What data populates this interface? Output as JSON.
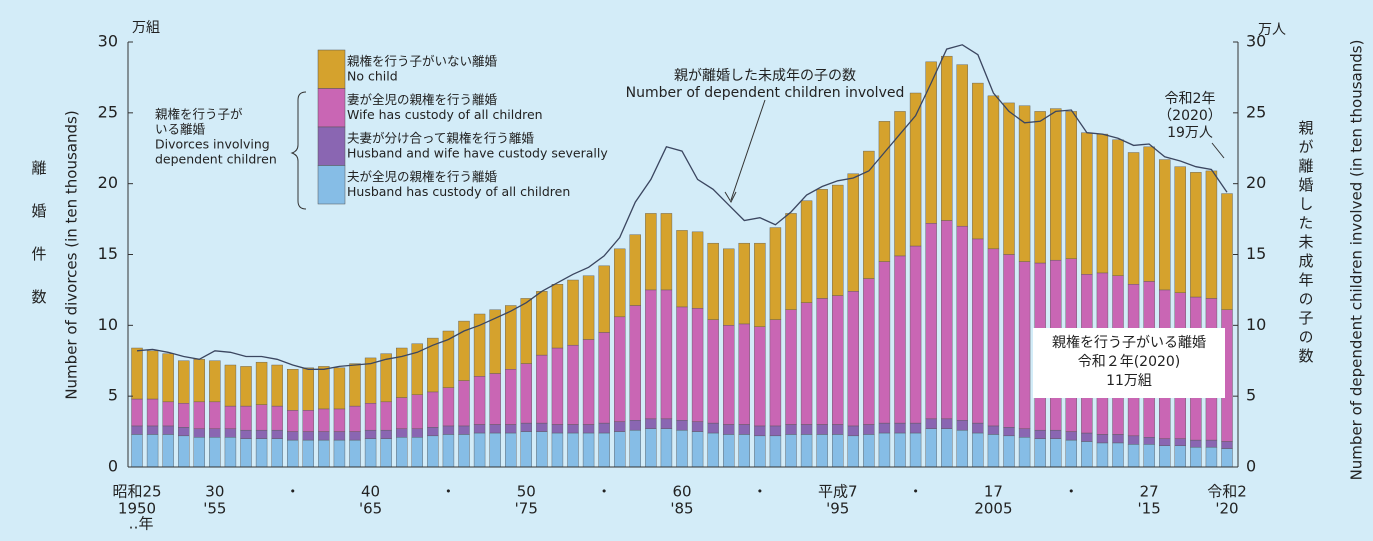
{
  "chart_data": {
    "type": "bar",
    "stacked": true,
    "y_unit": "万組",
    "y2_unit": "万人",
    "ylabel_jp": "離婚件数",
    "ylabel": "Number of divorces (in ten thousands)",
    "y2label_jp": "親が離婚した未成年の子の数",
    "y2label": "Number of dependent children involved (in ten thousands)",
    "x_unit": "‥年",
    "categories": [
      "昭和25",
      null,
      null,
      null,
      null,
      "30",
      null,
      null,
      null,
      null,
      "・",
      null,
      null,
      null,
      null,
      "40",
      null,
      null,
      null,
      null,
      "・",
      null,
      null,
      null,
      null,
      "50",
      null,
      null,
      null,
      null,
      "・",
      null,
      null,
      null,
      null,
      "60",
      null,
      null,
      null,
      null,
      "・",
      null,
      null,
      null,
      null,
      "平成7",
      null,
      null,
      null,
      null,
      "・",
      null,
      null,
      null,
      null,
      "17",
      null,
      null,
      null,
      null,
      "・",
      null,
      null,
      null,
      null,
      "27",
      null,
      null,
      null,
      null,
      "令和2"
    ],
    "categories_2": [
      "1950",
      null,
      null,
      null,
      null,
      "'55",
      null,
      null,
      null,
      null,
      null,
      null,
      null,
      null,
      null,
      "'65",
      null,
      null,
      null,
      null,
      null,
      null,
      null,
      null,
      null,
      "'75",
      null,
      null,
      null,
      null,
      null,
      null,
      null,
      null,
      null,
      "'85",
      null,
      null,
      null,
      null,
      null,
      null,
      null,
      null,
      null,
      "'95",
      null,
      null,
      null,
      null,
      null,
      null,
      null,
      null,
      null,
      "2005",
      null,
      null,
      null,
      null,
      null,
      null,
      null,
      null,
      null,
      "'15",
      null,
      null,
      null,
      null,
      "'20"
    ],
    "ylim": [
      0,
      30
    ],
    "yticks": [
      0,
      5,
      10,
      15,
      20,
      25,
      30
    ],
    "y2lim": [
      0,
      30
    ],
    "y2ticks": [
      0,
      5,
      10,
      15,
      20,
      25,
      30
    ],
    "legend_group": [
      "親権を行う子が",
      "いる離婚",
      "Divorces involving",
      "dependent children"
    ],
    "series": [
      {
        "name": "夫が全児の親権を行う離婚",
        "name_en": "Husband has custody of all children",
        "color": "#86bde6",
        "values": [
          2.3,
          2.3,
          2.3,
          2.2,
          2.1,
          2.1,
          2.1,
          2.0,
          2.0,
          2.0,
          1.9,
          1.9,
          1.9,
          1.9,
          1.9,
          2.0,
          2.0,
          2.1,
          2.1,
          2.2,
          2.3,
          2.3,
          2.4,
          2.4,
          2.4,
          2.5,
          2.5,
          2.4,
          2.4,
          2.4,
          2.4,
          2.5,
          2.6,
          2.7,
          2.7,
          2.6,
          2.5,
          2.4,
          2.3,
          2.3,
          2.2,
          2.2,
          2.3,
          2.3,
          2.3,
          2.3,
          2.2,
          2.3,
          2.4,
          2.4,
          2.4,
          2.7,
          2.7,
          2.6,
          2.4,
          2.3,
          2.2,
          2.1,
          2.0,
          2.0,
          1.9,
          1.8,
          1.7,
          1.7,
          1.6,
          1.6,
          1.5,
          1.5,
          1.4,
          1.4,
          1.3
        ]
      },
      {
        "name": "夫妻が分け合って親権を行う離婚",
        "name_en": "Husband and wife have custody severally",
        "color": "#8a66b2",
        "values": [
          0.6,
          0.6,
          0.6,
          0.6,
          0.6,
          0.6,
          0.6,
          0.6,
          0.6,
          0.6,
          0.6,
          0.6,
          0.6,
          0.6,
          0.6,
          0.6,
          0.6,
          0.6,
          0.6,
          0.6,
          0.6,
          0.6,
          0.6,
          0.6,
          0.6,
          0.6,
          0.6,
          0.6,
          0.6,
          0.6,
          0.7,
          0.7,
          0.7,
          0.7,
          0.7,
          0.7,
          0.7,
          0.7,
          0.7,
          0.7,
          0.7,
          0.7,
          0.7,
          0.7,
          0.7,
          0.7,
          0.7,
          0.7,
          0.7,
          0.7,
          0.7,
          0.7,
          0.7,
          0.7,
          0.7,
          0.6,
          0.6,
          0.6,
          0.6,
          0.6,
          0.6,
          0.6,
          0.6,
          0.6,
          0.6,
          0.5,
          0.5,
          0.5,
          0.5,
          0.5,
          0.5
        ]
      },
      {
        "name": "妻が全児の親権を行う離婚",
        "name_en": "Wife has custody of all children",
        "color": "#c966b4",
        "values": [
          1.9,
          1.9,
          1.7,
          1.7,
          1.9,
          1.9,
          1.6,
          1.7,
          1.8,
          1.7,
          1.5,
          1.5,
          1.6,
          1.6,
          1.8,
          1.9,
          2.0,
          2.2,
          2.4,
          2.5,
          2.7,
          3.2,
          3.4,
          3.6,
          3.9,
          4.2,
          4.8,
          5.4,
          5.6,
          6.0,
          6.4,
          7.4,
          8.1,
          9.1,
          9.1,
          8.0,
          8.0,
          7.3,
          7.0,
          7.1,
          7.0,
          7.5,
          8.1,
          8.6,
          8.9,
          9.1,
          9.5,
          10.3,
          11.4,
          11.8,
          12.5,
          13.8,
          14.0,
          13.7,
          13.0,
          12.5,
          12.2,
          11.8,
          11.8,
          12.0,
          12.2,
          11.2,
          11.4,
          11.2,
          10.7,
          11.0,
          10.5,
          10.3,
          10.1,
          10.0,
          9.3
        ]
      },
      {
        "name": "親権を行う子がいない離婚",
        "name_en": "No child",
        "color": "#d5a22d",
        "values": [
          3.6,
          3.4,
          3.4,
          3.0,
          3.0,
          2.9,
          2.9,
          2.8,
          3.0,
          2.9,
          2.9,
          3.0,
          3.0,
          2.9,
          3.0,
          3.2,
          3.4,
          3.5,
          3.6,
          3.8,
          4.0,
          4.2,
          4.4,
          4.5,
          4.5,
          4.6,
          4.5,
          4.5,
          4.6,
          4.5,
          4.7,
          4.8,
          5.0,
          5.4,
          5.4,
          5.4,
          5.4,
          5.4,
          5.4,
          5.7,
          5.9,
          6.5,
          6.8,
          7.2,
          7.7,
          7.8,
          8.3,
          9.0,
          9.9,
          10.2,
          10.8,
          11.4,
          11.6,
          11.4,
          11.0,
          10.8,
          10.7,
          11.0,
          10.7,
          10.7,
          10.4,
          10.0,
          9.8,
          9.6,
          9.3,
          9.5,
          9.2,
          8.9,
          8.8,
          9.0,
          8.2
        ]
      },
      {
        "type": "line",
        "axis": "y2",
        "color": "#3b4660",
        "values": [
          8.2,
          8.3,
          8.1,
          7.8,
          7.6,
          8.2,
          8.1,
          7.8,
          7.8,
          7.6,
          7.2,
          6.9,
          6.9,
          7.1,
          7.2,
          7.3,
          7.6,
          7.8,
          8.1,
          8.6,
          9.0,
          9.6,
          10.0,
          10.5,
          11.0,
          11.6,
          12.4,
          13.0,
          13.6,
          14.1,
          14.9,
          16.2,
          18.7,
          20.3,
          22.6,
          22.3,
          20.3,
          19.6,
          18.5,
          17.4,
          17.6,
          17.1,
          18.0,
          19.2,
          19.8,
          20.2,
          20.4,
          20.9,
          22.2,
          23.5,
          24.8,
          27.1,
          29.5,
          29.8,
          29.1,
          26.4,
          25.1,
          24.3,
          24.4,
          25.1,
          25.2,
          23.6,
          23.5,
          23.2,
          22.7,
          22.8,
          21.9,
          21.6,
          21.2,
          21.0,
          19.4
        ]
      }
    ],
    "annotations": [
      {
        "lines": [
          "親が離婚した未成年の子の数",
          "Number of dependent children involved"
        ]
      },
      {
        "lines": [
          "令和2年",
          "（2020）",
          "19万人"
        ]
      },
      {
        "lines": [
          "親権を行う子がいる離婚",
          "令和２年(2020)",
          "11万組"
        ]
      }
    ]
  }
}
